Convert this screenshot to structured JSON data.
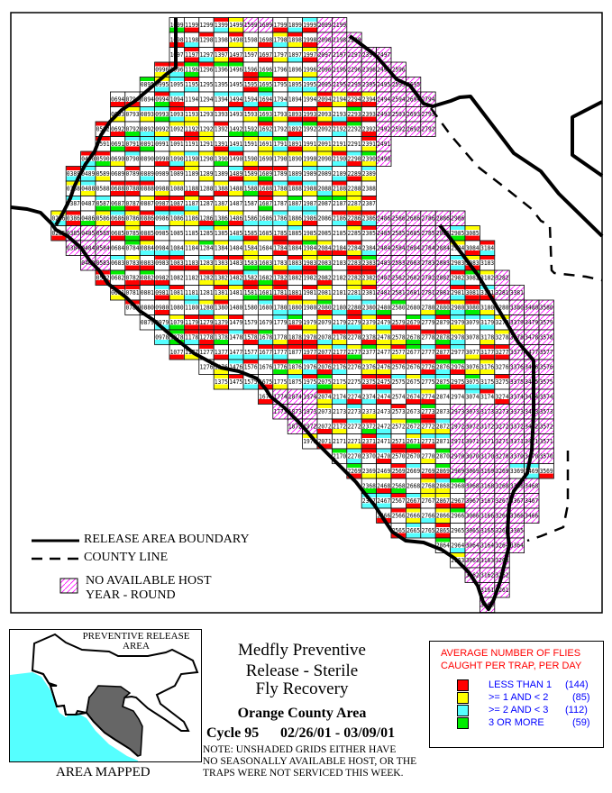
{
  "map": {
    "grid": {
      "rows": [
        {
          "row": 99,
          "from": 10,
          "to": 21
        },
        {
          "row": 98,
          "from": 10,
          "to": 22
        },
        {
          "row": 97,
          "from": 10,
          "to": 24
        },
        {
          "row": 96,
          "from": 9,
          "to": 25
        },
        {
          "row": 95,
          "from": 8,
          "to": 26
        },
        {
          "row": 94,
          "from": 6,
          "to": 27
        },
        {
          "row": 93,
          "from": 6,
          "to": 27
        },
        {
          "row": 92,
          "from": 5,
          "to": 27
        },
        {
          "row": 91,
          "from": 5,
          "to": 24
        },
        {
          "row": 90,
          "from": 4,
          "to": 24
        },
        {
          "row": 89,
          "from": 3,
          "to": 23
        },
        {
          "row": 88,
          "from": 3,
          "to": 23
        },
        {
          "row": 87,
          "from": 3,
          "to": 23
        },
        {
          "row": 86,
          "from": 2,
          "to": 29
        },
        {
          "row": 85,
          "from": 2,
          "to": 30
        },
        {
          "row": 84,
          "from": 3,
          "to": 31
        },
        {
          "row": 83,
          "from": 4,
          "to": 31
        },
        {
          "row": 82,
          "from": 5,
          "to": 32
        },
        {
          "row": 81,
          "from": 6,
          "to": 33
        },
        {
          "row": 80,
          "from": 7,
          "to": 35
        },
        {
          "row": 79,
          "from": 8,
          "to": 35
        },
        {
          "row": 78,
          "from": 9,
          "to": 35
        },
        {
          "row": 77,
          "from": 10,
          "to": 35
        },
        {
          "row": 76,
          "from": 12,
          "to": 35
        },
        {
          "row": 75,
          "from": 13,
          "to": 35
        },
        {
          "row": 74,
          "from": 16,
          "to": 35
        },
        {
          "row": 73,
          "from": 17,
          "to": 35
        },
        {
          "row": 72,
          "from": 18,
          "to": 35
        },
        {
          "row": 71,
          "from": 19,
          "to": 35
        },
        {
          "row": 70,
          "from": 21,
          "to": 35
        },
        {
          "row": 69,
          "from": 22,
          "to": 35
        },
        {
          "row": 68,
          "from": 23,
          "to": 34
        },
        {
          "row": 67,
          "from": 23,
          "to": 34
        },
        {
          "row": 66,
          "from": 24,
          "to": 34
        },
        {
          "row": 65,
          "from": 25,
          "to": 33
        },
        {
          "row": 64,
          "from": 28,
          "to": 33
        },
        {
          "row": 63,
          "from": 29,
          "to": 32
        },
        {
          "row": 62,
          "from": 30,
          "to": 32
        },
        {
          "row": 61,
          "from": 31,
          "to": 32
        },
        {
          "row": 60,
          "from": 31,
          "to": 31
        }
      ],
      "hatched_ranges": [
        {
          "rows": [
            95,
            99
          ],
          "cols": [
            20,
            26
          ]
        },
        {
          "rows": [
            99,
            99
          ],
          "cols": [
            15,
            16
          ]
        },
        {
          "rows": [
            92,
            94
          ],
          "cols": [
            24,
            27
          ]
        },
        {
          "rows": [
            90,
            91
          ],
          "cols": [
            24,
            24
          ]
        },
        {
          "rows": [
            86,
            86
          ],
          "cols": [
            24,
            29
          ]
        },
        {
          "rows": [
            81,
            85
          ],
          "cols": [
            24,
            28
          ]
        },
        {
          "rows": [
            81,
            84
          ],
          "cols": [
            32,
            33
          ]
        },
        {
          "rows": [
            70,
            80
          ],
          "cols": [
            33,
            35
          ]
        },
        {
          "rows": [
            69,
            73
          ],
          "cols": [
            29,
            32
          ]
        },
        {
          "rows": [
            60,
            68
          ],
          "cols": [
            30,
            34
          ]
        },
        {
          "rows": [
            83,
            85
          ],
          "cols": [
            3,
            5
          ]
        },
        {
          "rows": [
            72,
            74
          ],
          "cols": [
            17,
            19
          ]
        }
      ]
    },
    "colors": {
      "less_than_1": "#ff0000",
      "1_to_2": "#ffff00",
      "2_to_3": "#55ffff",
      "3_or_more": "#00ee00",
      "hatch": "#ff00ff"
    }
  },
  "map_legend": {
    "release_boundary": "RELEASE AREA BOUNDARY",
    "county_line": "COUNTY LINE",
    "no_host_1": "NO AVAILABLE HOST",
    "no_host_2": "YEAR - ROUND"
  },
  "inset": {
    "label": "PREVENTIVE RELEASE",
    "label2": "AREA",
    "caption": "AREA MAPPED"
  },
  "title": {
    "line1": "Medfly Preventive",
    "line2": "Release - Sterile",
    "line3": "Fly Recovery",
    "area": "Orange County Area",
    "cycle": "Cycle 95",
    "dates": "02/26/01 - 03/09/01",
    "note1": "NOTE: UNSHADED GRIDS EITHER HAVE",
    "note2": "NO SEASONALLY AVAILABLE HOST, OR THE",
    "note3": "TRAPS WERE NOT SERVICED THIS WEEK."
  },
  "legend": {
    "heading1": "AVERAGE NUMBER OF FLIES",
    "heading2": "CAUGHT PER TRAP, PER DAY",
    "items": [
      {
        "label": "LESS THAN 1",
        "count": "(144)",
        "color": "#ff0000"
      },
      {
        "label": ">= 1 AND < 2",
        "count": "(85)",
        "color": "#ffff00"
      },
      {
        "label": ">= 2 AND < 3",
        "count": "(112)",
        "color": "#55ffff"
      },
      {
        "label": "3 OR MORE",
        "count": "(59)",
        "color": "#00ee00"
      }
    ]
  }
}
